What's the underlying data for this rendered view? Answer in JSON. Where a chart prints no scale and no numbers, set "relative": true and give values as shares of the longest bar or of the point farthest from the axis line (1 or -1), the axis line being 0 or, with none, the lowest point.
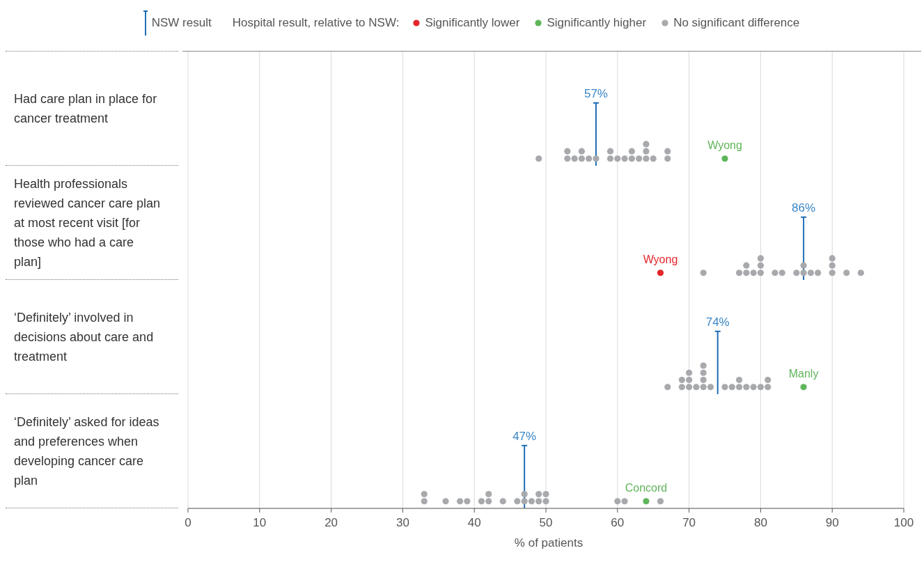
{
  "chart_data": [
    {
      "type": "scatter",
      "title": "Had care plan in place for cancer treatment",
      "legend": "top",
      "legend_title": "Hospital result, relative to NSW:",
      "relative": true,
      "marker": "circle",
      "xlim": [
        0,
        100
      ],
      "xticks": [
        0,
        10,
        20,
        30,
        40,
        50,
        60,
        70,
        80,
        90,
        100
      ],
      "grid": "x",
      "tick_labels": false,
      "series": [
        {
          "name": "Significantly higher",
          "color": "#5fb55a",
          "x": [
            75
          ],
          "values": [
            0.33
          ]
        },
        {
          "name": "No significant difference",
          "color": "#a7a9ac",
          "x": [
            49,
            53,
            53,
            54,
            55,
            55,
            56,
            57,
            59,
            59,
            60,
            61,
            62,
            62,
            63,
            64,
            64,
            64,
            65,
            67,
            67
          ],
          "values": [
            0.33,
            0.33,
            0.67,
            0.33,
            0.33,
            0.67,
            0.33,
            0.33,
            0.33,
            0.67,
            0.33,
            0.33,
            0.33,
            0.67,
            0.33,
            0.33,
            0.67,
            1,
            0.33,
            0.33,
            0.67
          ]
        }
      ],
      "ref_lines": [
        {
          "axis": "x",
          "value": 57,
          "label": "57%",
          "color": "#1f6db5"
        }
      ],
      "annotations": [
        "NSW result",
        {
          "text": "Wyong",
          "x": 75,
          "y": 0.33
        }
      ]
    },
    {
      "type": "scatter",
      "title": "Health professionals reviewed cancer care plan at most recent visit [for those who had a care plan]",
      "relative": true,
      "marker": "circle",
      "xlim": [
        0,
        100
      ],
      "xticks": [
        0,
        10,
        20,
        30,
        40,
        50,
        60,
        70,
        80,
        90,
        100
      ],
      "grid": "x",
      "tick_labels": false,
      "series": [
        {
          "name": "Significantly lower",
          "color": "#e3262b",
          "x": [
            66
          ],
          "values": [
            0.33
          ]
        },
        {
          "color": "#a7a9ac",
          "x": [
            72,
            77,
            78,
            78,
            79,
            80,
            80,
            80,
            82,
            83,
            85,
            86,
            86,
            87,
            88,
            90,
            90,
            90,
            92,
            94
          ],
          "values": [
            0.33,
            0.33,
            0.33,
            0.67,
            0.33,
            0.33,
            0.67,
            1,
            0.33,
            0.33,
            0.33,
            0.33,
            0.67,
            0.33,
            0.33,
            0.33,
            0.67,
            1,
            0.33,
            0.33
          ]
        }
      ],
      "ref_lines": [
        {
          "axis": "x",
          "value": 86,
          "label": "86%",
          "color": "#1f6db5"
        }
      ],
      "annotations": [
        {
          "text": "Wyong",
          "x": 66,
          "y": 0.33
        }
      ]
    },
    {
      "type": "scatter",
      "title": "‘Definitely’ involved in decisions about care and treatment",
      "relative": true,
      "marker": "circle",
      "xlim": [
        0,
        100
      ],
      "xticks": [
        0,
        10,
        20,
        30,
        40,
        50,
        60,
        70,
        80,
        90,
        100
      ],
      "grid": "x",
      "tick_labels": false,
      "series": [
        {
          "color": "#5fb55a",
          "x": [
            86
          ],
          "values": [
            0.25
          ]
        },
        {
          "color": "#a7a9ac",
          "x": [
            67,
            69,
            69,
            70,
            70,
            70,
            71,
            72,
            72,
            72,
            72,
            73,
            75,
            76,
            77,
            77,
            78,
            79,
            80,
            81,
            81
          ],
          "values": [
            0.25,
            0.25,
            0.5,
            0.25,
            0.5,
            0.75,
            0.25,
            0.25,
            0.5,
            0.75,
            1,
            0.25,
            0.25,
            0.25,
            0.25,
            0.5,
            0.25,
            0.25,
            0.25,
            0.25,
            0.5
          ]
        }
      ],
      "ref_lines": [
        {
          "axis": "x",
          "value": 74,
          "label": "74%",
          "color": "#1f6db5"
        }
      ],
      "annotations": [
        {
          "text": "Manly",
          "x": 86,
          "y": 0.25
        }
      ]
    },
    {
      "type": "scatter",
      "title": "‘Definitely’ asked for ideas and preferences when developing cancer care plan",
      "xlabel": "% of patients",
      "relative": true,
      "marker": "circle",
      "xlim": [
        0,
        100
      ],
      "xticks": [
        0,
        10,
        20,
        30,
        40,
        50,
        60,
        70,
        80,
        90,
        100
      ],
      "grid": "x",
      "tick_labels": "x",
      "series": [
        {
          "color": "#5fb55a",
          "x": [
            64
          ],
          "values": [
            0.5
          ]
        },
        {
          "color": "#a7a9ac",
          "x": [
            33,
            33,
            36,
            38,
            39,
            41,
            42,
            42,
            44,
            46,
            47,
            47,
            48,
            49,
            49,
            50,
            50,
            60,
            61,
            66
          ],
          "values": [
            0.5,
            1,
            0.5,
            0.5,
            0.5,
            0.5,
            0.5,
            1,
            0.5,
            0.5,
            0.5,
            1,
            0.5,
            0.5,
            1,
            0.5,
            1,
            0.5,
            0.5,
            0.5
          ]
        }
      ],
      "ref_lines": [
        {
          "axis": "x",
          "value": 47,
          "label": "47%",
          "color": "#1f6db5"
        }
      ],
      "annotations": [
        {
          "text": "Concord",
          "x": 64,
          "y": 0.5
        }
      ]
    }
  ]
}
